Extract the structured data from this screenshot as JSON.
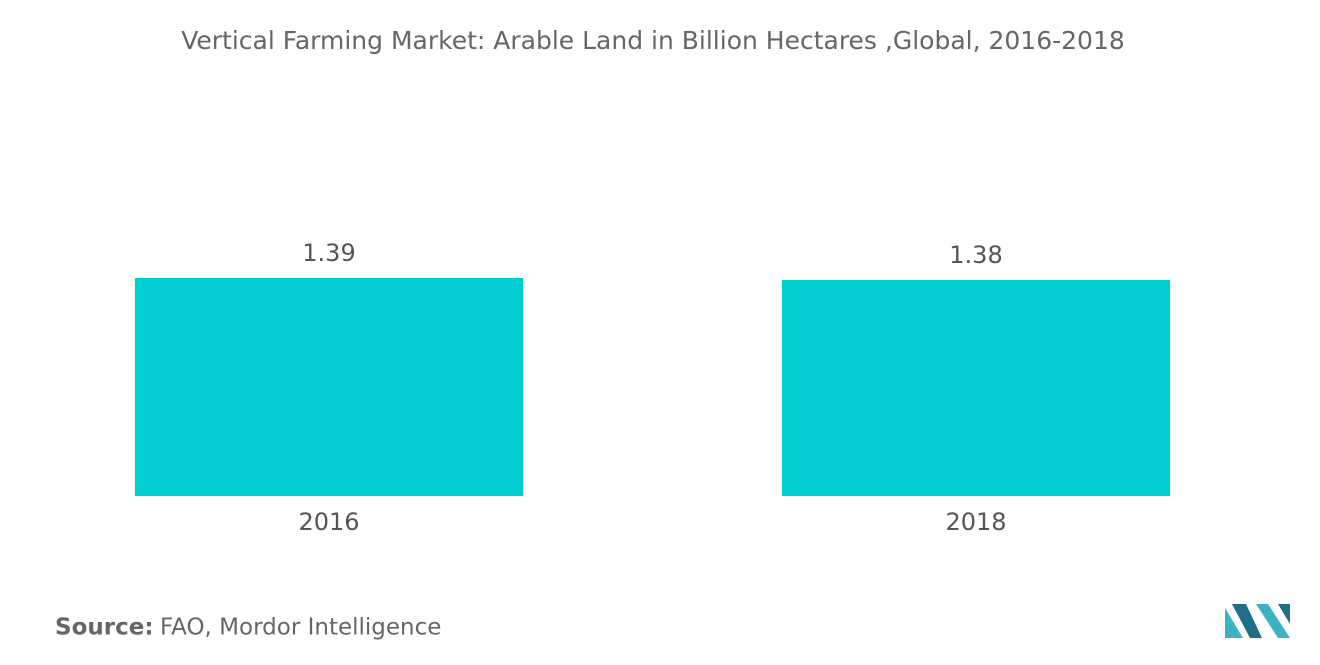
{
  "chart_data": {
    "type": "bar",
    "title": "Vertical Farming Market: Arable Land in Billion Hectares ,Global, 2016-2018",
    "categories": [
      "2016",
      "2018"
    ],
    "values": [
      1.39,
      1.38
    ],
    "color": "#00ced0",
    "ylim": [
      0.3,
      1.8
    ],
    "source_label": "Source:",
    "source": "FAO, Mordor Intelligence"
  }
}
